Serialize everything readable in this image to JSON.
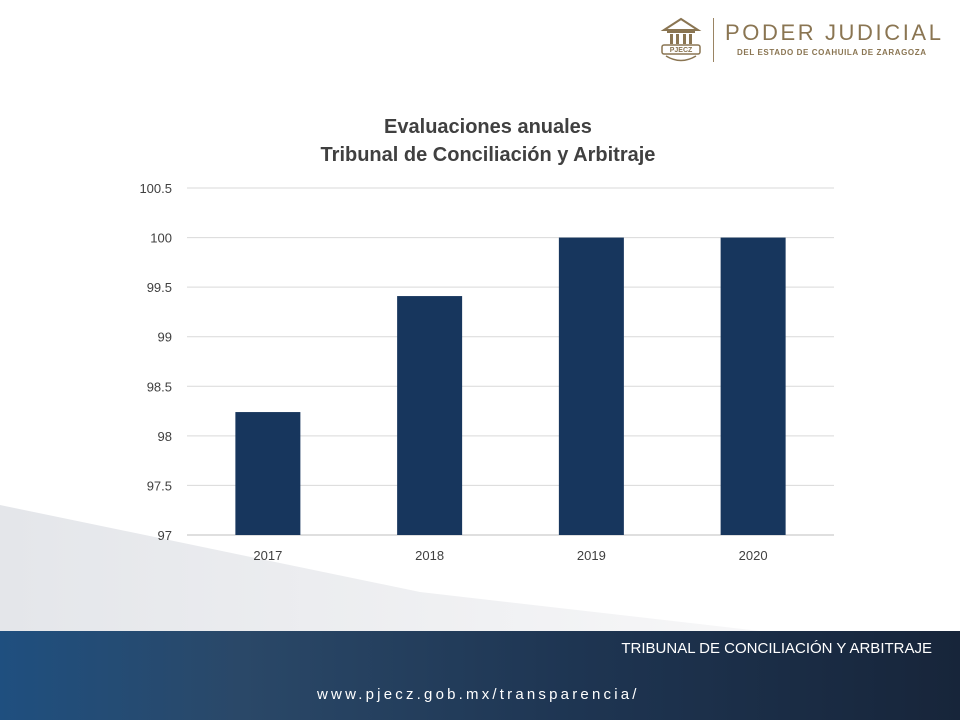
{
  "header": {
    "logo_badge_text": "PJECZ",
    "logo_title": "PODER JUDICIAL",
    "logo_subtitle": "DEL ESTADO DE COAHUILA DE ZARAGOZA"
  },
  "chart_data": {
    "type": "bar",
    "title": "Evaluaciones anuales",
    "subtitle": "Tribunal de Conciliación y Arbitraje",
    "xlabel": "",
    "ylabel": "",
    "categories": [
      "2017",
      "2018",
      "2019",
      "2020"
    ],
    "values": [
      98.24,
      99.41,
      100,
      100
    ],
    "ylim": [
      97,
      100.5
    ],
    "yticks": [
      "97",
      "97.5",
      "98",
      "98.5",
      "99",
      "99.5",
      "100",
      "100.5"
    ],
    "grid": true,
    "legend": "none",
    "bar_color": "#17365d"
  },
  "footer": {
    "section_title": "TRIBUNAL DE CONCILIACIÓN Y ARBITRAJE",
    "url": "www.pjecz.gob.mx/transparencia/"
  },
  "colors": {
    "brand_gold": "#8a7552",
    "footer_blue": "#1e3552"
  }
}
